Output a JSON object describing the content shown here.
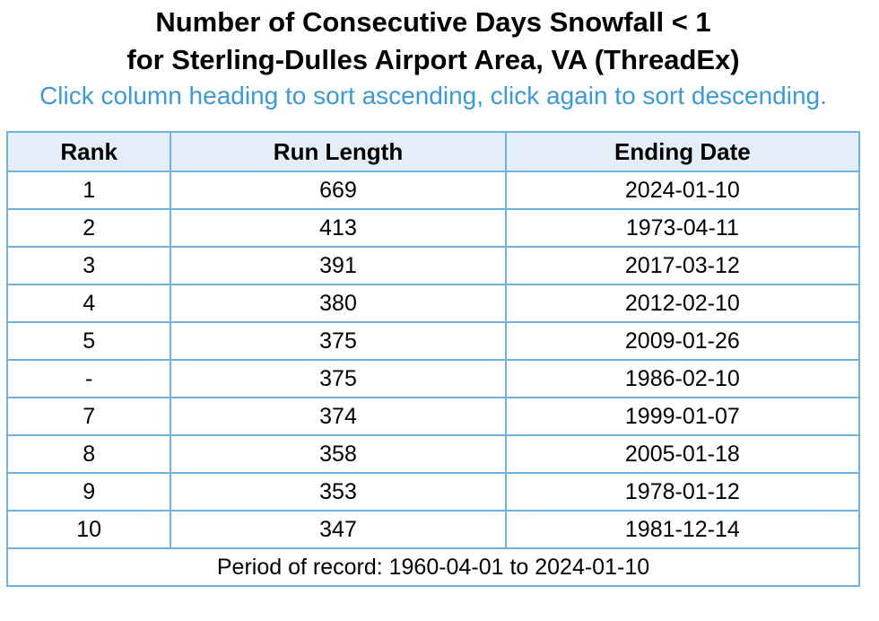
{
  "title_line1": "Number of Consecutive Days Snowfall < 1",
  "title_line2": "for Sterling-Dulles Airport Area, VA (ThreadEx)",
  "instructions": "Click column heading to sort ascending, click again to sort descending.",
  "colors": {
    "instruction_text": "#3a9ad9",
    "table_border": "#6fb2de",
    "header_background": "#e3eef9"
  },
  "table": {
    "columns": [
      "Rank",
      "Run Length",
      "Ending Date"
    ],
    "rows": [
      {
        "rank": "1",
        "run_length": "669",
        "ending_date": "2024-01-10"
      },
      {
        "rank": "2",
        "run_length": "413",
        "ending_date": "1973-04-11"
      },
      {
        "rank": "3",
        "run_length": "391",
        "ending_date": "2017-03-12"
      },
      {
        "rank": "4",
        "run_length": "380",
        "ending_date": "2012-02-10"
      },
      {
        "rank": "5",
        "run_length": "375",
        "ending_date": "2009-01-26"
      },
      {
        "rank": "-",
        "run_length": "375",
        "ending_date": "1986-02-10"
      },
      {
        "rank": "7",
        "run_length": "374",
        "ending_date": "1999-01-07"
      },
      {
        "rank": "8",
        "run_length": "358",
        "ending_date": "2005-01-18"
      },
      {
        "rank": "9",
        "run_length": "353",
        "ending_date": "1978-01-12"
      },
      {
        "rank": "10",
        "run_length": "347",
        "ending_date": "1981-12-14"
      }
    ],
    "footer": "Period of record: 1960-04-01 to 2024-01-10"
  }
}
